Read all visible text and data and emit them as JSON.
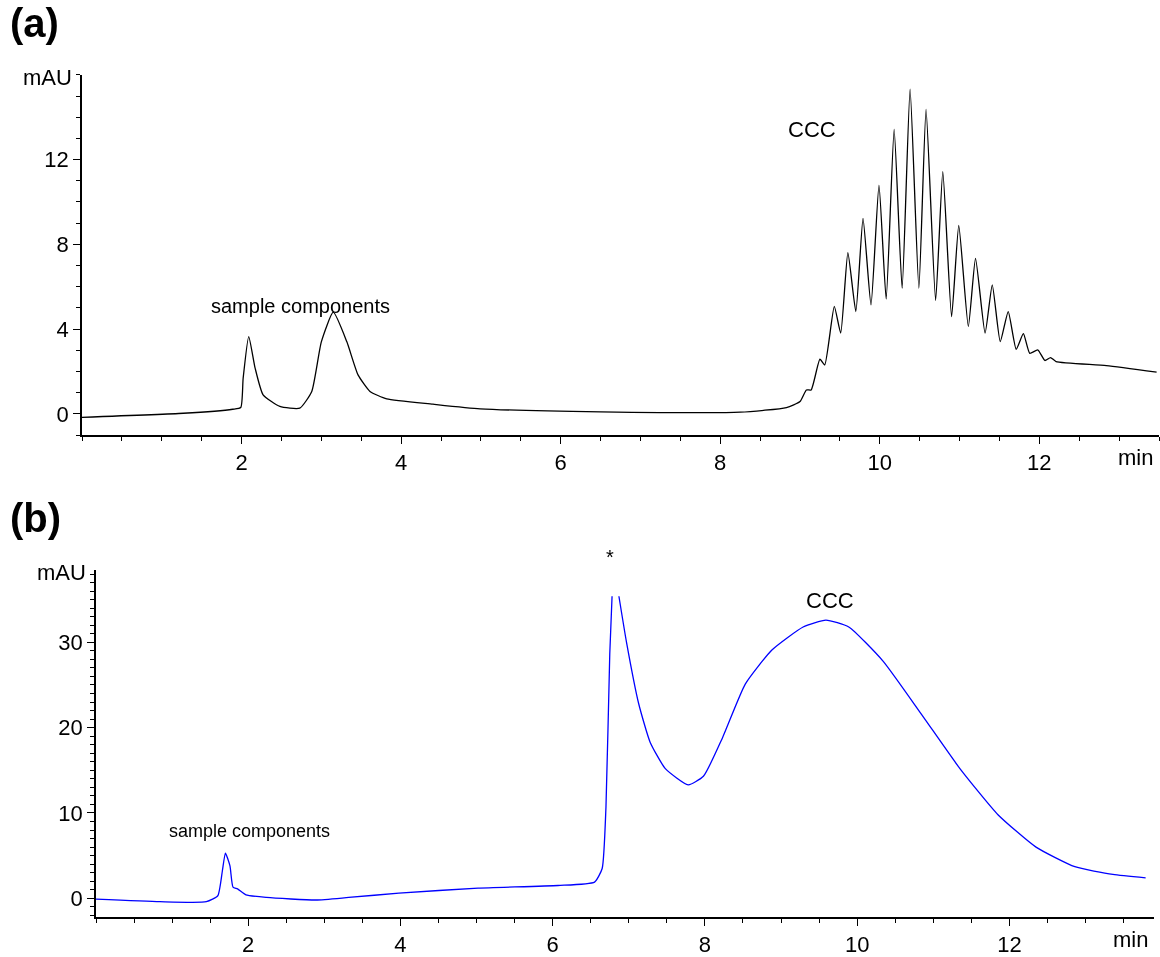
{
  "chart_data": [
    {
      "type": "line",
      "title": "(a)",
      "xlabel": "min",
      "ylabel": "mAU",
      "x": [
        0,
        1.27,
        1.89,
        1.99,
        2.02,
        2.09,
        2.17,
        2.27,
        2.48,
        2.73,
        2.88,
        3.0,
        3.15,
        3.32,
        3.46,
        3.61,
        3.82,
        4.4,
        4.99,
        6.5,
        8.25,
        8.83,
        9.0,
        9.08,
        9.14,
        9.25,
        9.31,
        9.43,
        9.51,
        9.6,
        9.7,
        9.79,
        9.89,
        9.99,
        10.08,
        10.18,
        10.28,
        10.38,
        10.49,
        10.58,
        10.7,
        10.79,
        10.9,
        10.99,
        11.11,
        11.2,
        11.32,
        11.41,
        11.51,
        11.61,
        11.71,
        11.8,
        11.88,
        11.98,
        12.07,
        12.14,
        12.21,
        12.84,
        13.47
      ],
      "series": [
        {
          "color": "#000000",
          "values": [
            -0.16,
            0.03,
            0.22,
            0.3,
            1.68,
            3.65,
            2.16,
            0.9,
            0.35,
            0.27,
            1.06,
            3.4,
            4.8,
            3.4,
            1.84,
            1.06,
            0.71,
            0.46,
            0.24,
            0.1,
            0.08,
            0.3,
            0.58,
            1.13,
            1.13,
            2.58,
            2.31,
            5.07,
            3.81,
            7.61,
            4.83,
            9.23,
            5.14,
            10.8,
            5.42,
            13.43,
            5.93,
            15.33,
            5.93,
            14.37,
            5.35,
            11.43,
            4.59,
            8.89,
            4.12,
            7.34,
            3.81,
            6.09,
            3.41,
            4.83,
            3.05,
            3.79,
            2.86,
            3.02,
            2.52,
            2.66,
            2.47,
            2.28,
            1.97
          ]
        }
      ],
      "xlim": [
        0,
        13.5
      ],
      "xticks": [
        2,
        4,
        6,
        8,
        10,
        12
      ],
      "ylim": [
        -1,
        16
      ],
      "yticks": [
        0,
        4,
        8,
        12
      ],
      "marker": "none",
      "line_style": "solid",
      "annotations": [
        "sample components",
        "CCC"
      ]
    },
    {
      "type": "line",
      "title": "(b)",
      "xlabel": "min",
      "ylabel": "mAU",
      "x": [
        0,
        0.84,
        1.45,
        1.6,
        1.66,
        1.7,
        1.76,
        1.8,
        1.86,
        1.97,
        2.24,
        2.89,
        3.32,
        3.98,
        5.02,
        6.07,
        6.55,
        6.65,
        6.7,
        6.75,
        6.78,
        6.82,
        6.87,
        6.97,
        7.13,
        7.28,
        7.48,
        7.78,
        7.98,
        8.23,
        8.53,
        8.88,
        9.29,
        9.59,
        9.89,
        10.34,
        10.85,
        11.35,
        11.85,
        12.35,
        12.86,
        13.36,
        13.79
      ],
      "series": [
        {
          "color": "#0000ff",
          "values": [
            -0.1,
            -0.4,
            -0.4,
            0.3,
            3.2,
            5.3,
            3.8,
            1.3,
            1.1,
            0.4,
            0.1,
            -0.2,
            0.1,
            0.6,
            1.2,
            1.5,
            1.9,
            3.5,
            10.7,
            28.7,
            35.4,
            null,
            35.4,
            30.0,
            22.8,
            18.3,
            15.2,
            13.3,
            14.3,
            18.8,
            25.1,
            29.1,
            31.8,
            32.6,
            31.8,
            27.8,
            21.5,
            15.2,
            9.8,
            6.0,
            3.7,
            2.8,
            2.4
          ]
        }
      ],
      "xlim": [
        0,
        13.9
      ],
      "xticks": [
        2,
        4,
        6,
        8,
        10,
        12
      ],
      "ylim": [
        -2.2,
        38.5
      ],
      "yticks": [
        0,
        10,
        20,
        30
      ],
      "marker": "none",
      "line_style": "solid",
      "annotations": [
        "sample components",
        "*",
        "CCC"
      ]
    }
  ]
}
